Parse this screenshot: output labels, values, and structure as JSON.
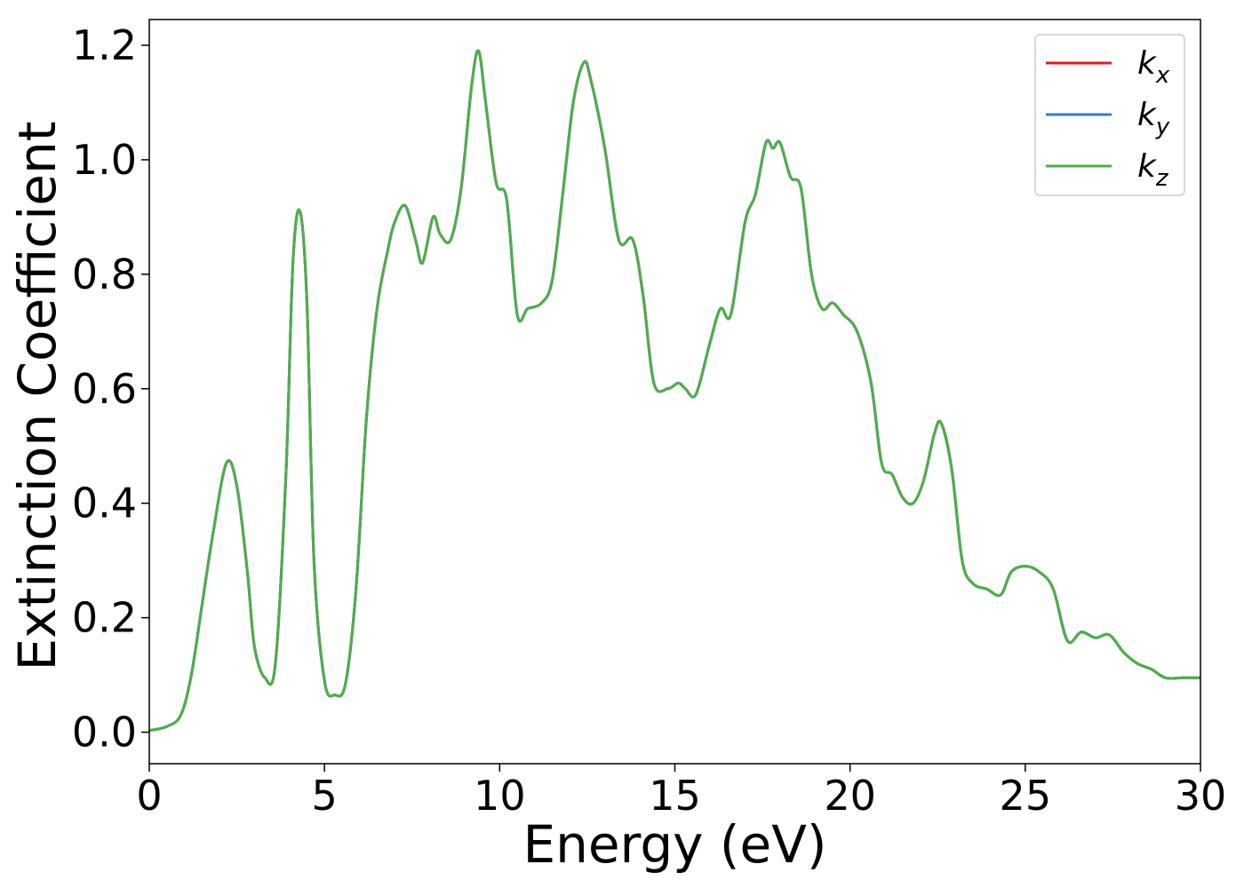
{
  "chart_data": {
    "type": "line",
    "title": "",
    "xlabel": "Energy (eV)",
    "ylabel": "Extinction Coefficient",
    "xlim": [
      0,
      30
    ],
    "ylim": [
      -0.055,
      1.245
    ],
    "xticks": [
      0,
      5,
      10,
      15,
      20,
      25,
      30
    ],
    "xtick_labels": [
      "0",
      "5",
      "10",
      "15",
      "20",
      "25",
      "30"
    ],
    "yticks": [
      0.0,
      0.2,
      0.4,
      0.6,
      0.8,
      1.0,
      1.2
    ],
    "ytick_labels": [
      "0.0",
      "0.2",
      "0.4",
      "0.6",
      "0.8",
      "1.0",
      "1.2"
    ],
    "grid": false,
    "legend_position": "top-right",
    "x": [
      0,
      0.5,
      0.9,
      1.2,
      1.5,
      1.8,
      2.2,
      2.5,
      2.8,
      3.0,
      3.3,
      3.6,
      3.9,
      4.1,
      4.3,
      4.5,
      4.7,
      5.0,
      5.3,
      5.6,
      5.9,
      6.2,
      6.5,
      6.8,
      7.0,
      7.3,
      7.6,
      7.8,
      8.1,
      8.3,
      8.6,
      8.9,
      9.2,
      9.4,
      9.6,
      9.9,
      10.2,
      10.5,
      10.8,
      11.2,
      11.5,
      11.8,
      12.1,
      12.4,
      12.6,
      13.0,
      13.4,
      13.8,
      14.1,
      14.4,
      14.8,
      15.1,
      15.3,
      15.6,
      16.0,
      16.3,
      16.6,
      17.0,
      17.3,
      17.6,
      17.8,
      18.0,
      18.3,
      18.6,
      18.9,
      19.2,
      19.5,
      19.8,
      20.2,
      20.6,
      20.9,
      21.2,
      21.5,
      21.8,
      22.1,
      22.4,
      22.6,
      22.9,
      23.2,
      23.5,
      23.9,
      24.3,
      24.6,
      25.0,
      25.4,
      25.8,
      26.2,
      26.6,
      27.0,
      27.4,
      27.8,
      28.2,
      28.6,
      29.0,
      29.5,
      30.0
    ],
    "series": [
      {
        "name": "k_x",
        "label_base": "k",
        "label_sub": "x",
        "color": "#e41a1c",
        "values": [
          0.003,
          0.01,
          0.03,
          0.1,
          0.22,
          0.34,
          0.47,
          0.43,
          0.28,
          0.15,
          0.095,
          0.12,
          0.45,
          0.82,
          0.91,
          0.75,
          0.3,
          0.09,
          0.065,
          0.085,
          0.25,
          0.55,
          0.74,
          0.84,
          0.89,
          0.92,
          0.86,
          0.82,
          0.9,
          0.87,
          0.86,
          0.95,
          1.13,
          1.19,
          1.1,
          0.96,
          0.93,
          0.73,
          0.74,
          0.75,
          0.79,
          0.94,
          1.1,
          1.17,
          1.14,
          1.02,
          0.86,
          0.86,
          0.76,
          0.61,
          0.6,
          0.61,
          0.6,
          0.59,
          0.68,
          0.74,
          0.73,
          0.89,
          0.94,
          1.03,
          1.02,
          1.03,
          0.97,
          0.95,
          0.8,
          0.74,
          0.75,
          0.73,
          0.7,
          0.61,
          0.47,
          0.45,
          0.41,
          0.4,
          0.44,
          0.52,
          0.54,
          0.46,
          0.3,
          0.26,
          0.25,
          0.24,
          0.28,
          0.29,
          0.28,
          0.25,
          0.16,
          0.175,
          0.165,
          0.17,
          0.14,
          0.12,
          0.11,
          0.095,
          0.095,
          0.095
        ]
      },
      {
        "name": "k_y",
        "label_base": "k",
        "label_sub": "y",
        "color": "#377eb8",
        "values": [
          0.003,
          0.01,
          0.03,
          0.1,
          0.22,
          0.34,
          0.47,
          0.43,
          0.28,
          0.15,
          0.095,
          0.12,
          0.45,
          0.82,
          0.91,
          0.75,
          0.3,
          0.09,
          0.065,
          0.085,
          0.25,
          0.55,
          0.74,
          0.84,
          0.89,
          0.92,
          0.86,
          0.82,
          0.9,
          0.87,
          0.86,
          0.95,
          1.13,
          1.19,
          1.1,
          0.96,
          0.93,
          0.73,
          0.74,
          0.75,
          0.79,
          0.94,
          1.1,
          1.17,
          1.14,
          1.02,
          0.86,
          0.86,
          0.76,
          0.61,
          0.6,
          0.61,
          0.6,
          0.59,
          0.68,
          0.74,
          0.73,
          0.89,
          0.94,
          1.03,
          1.02,
          1.03,
          0.97,
          0.95,
          0.8,
          0.74,
          0.75,
          0.73,
          0.7,
          0.61,
          0.47,
          0.45,
          0.41,
          0.4,
          0.44,
          0.52,
          0.54,
          0.46,
          0.3,
          0.26,
          0.25,
          0.24,
          0.28,
          0.29,
          0.28,
          0.25,
          0.16,
          0.175,
          0.165,
          0.17,
          0.14,
          0.12,
          0.11,
          0.095,
          0.095,
          0.095
        ]
      },
      {
        "name": "k_z",
        "label_base": "k",
        "label_sub": "z",
        "color": "#4daf4a",
        "values": [
          0.003,
          0.01,
          0.03,
          0.1,
          0.22,
          0.34,
          0.47,
          0.43,
          0.28,
          0.15,
          0.095,
          0.12,
          0.45,
          0.82,
          0.91,
          0.75,
          0.3,
          0.09,
          0.065,
          0.085,
          0.25,
          0.55,
          0.74,
          0.84,
          0.89,
          0.92,
          0.86,
          0.82,
          0.9,
          0.87,
          0.86,
          0.95,
          1.13,
          1.19,
          1.1,
          0.96,
          0.93,
          0.73,
          0.74,
          0.75,
          0.79,
          0.94,
          1.1,
          1.17,
          1.14,
          1.02,
          0.86,
          0.86,
          0.76,
          0.61,
          0.6,
          0.61,
          0.6,
          0.59,
          0.68,
          0.74,
          0.73,
          0.89,
          0.94,
          1.03,
          1.02,
          1.03,
          0.97,
          0.95,
          0.8,
          0.74,
          0.75,
          0.73,
          0.7,
          0.61,
          0.47,
          0.45,
          0.41,
          0.4,
          0.44,
          0.52,
          0.54,
          0.46,
          0.3,
          0.26,
          0.25,
          0.24,
          0.28,
          0.29,
          0.28,
          0.25,
          0.16,
          0.175,
          0.165,
          0.17,
          0.14,
          0.12,
          0.11,
          0.095,
          0.095,
          0.095
        ]
      }
    ]
  }
}
